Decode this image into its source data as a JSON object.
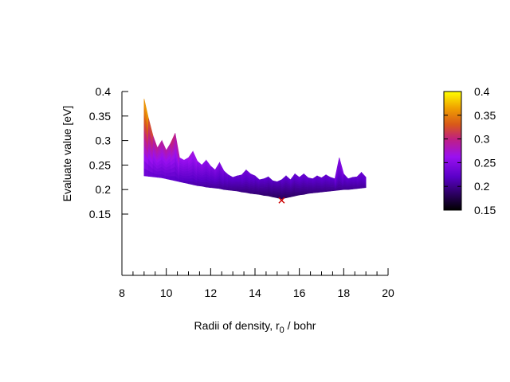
{
  "chart_data": {
    "type": "area",
    "ylabel": "Evaluate value [eV]",
    "xlabel": {
      "prefix": "Radii of density, r",
      "subscript": "0",
      "suffix": " / bohr"
    },
    "xlim": [
      8,
      20
    ],
    "xticks": [
      "8",
      "10",
      "12",
      "14",
      "16",
      "18",
      "20"
    ],
    "xtick_values": [
      8,
      10,
      12,
      14,
      16,
      18,
      20
    ],
    "ylim": [
      0.025,
      0.4
    ],
    "yticks": [
      "0.4",
      "0.35",
      "0.3",
      "0.25",
      "0.2",
      "0.15"
    ],
    "ytick_values": [
      0.4,
      0.35,
      0.3,
      0.25,
      0.2,
      0.15
    ],
    "colorbar": {
      "range": [
        0.15,
        0.4
      ],
      "ticks": [
        "0.4",
        "0.35",
        "0.3",
        "0.25",
        "0.2",
        "0.15"
      ],
      "tick_values": [
        0.4,
        0.35,
        0.3,
        0.25,
        0.2,
        0.15
      ],
      "palette": [
        "#000000",
        "#5a00c8",
        "#9a10f0",
        "#c02080",
        "#d8581a",
        "#f0a000",
        "#ffff00"
      ],
      "palette_stops": [
        0.0,
        0.28,
        0.45,
        0.6,
        0.72,
        0.86,
        1.0
      ]
    },
    "surface": {
      "x": [
        9.0,
        9.2,
        9.4,
        9.6,
        9.8,
        10.0,
        10.2,
        10.4,
        10.6,
        10.8,
        11.0,
        11.2,
        11.4,
        11.6,
        11.8,
        12.0,
        12.2,
        12.4,
        12.6,
        12.8,
        13.0,
        13.2,
        13.4,
        13.6,
        13.8,
        14.0,
        14.2,
        14.4,
        14.6,
        14.8,
        15.0,
        15.2,
        15.4,
        15.6,
        15.8,
        16.0,
        16.2,
        16.4,
        16.6,
        16.8,
        17.0,
        17.2,
        17.4,
        17.6,
        17.8,
        18.0,
        18.2,
        18.4,
        18.6,
        18.8,
        19.0
      ],
      "upper": [
        0.385,
        0.345,
        0.31,
        0.285,
        0.3,
        0.28,
        0.295,
        0.315,
        0.265,
        0.26,
        0.265,
        0.278,
        0.258,
        0.25,
        0.26,
        0.248,
        0.24,
        0.255,
        0.238,
        0.23,
        0.225,
        0.228,
        0.23,
        0.24,
        0.232,
        0.228,
        0.22,
        0.222,
        0.226,
        0.218,
        0.216,
        0.22,
        0.228,
        0.22,
        0.232,
        0.225,
        0.232,
        0.224,
        0.222,
        0.228,
        0.224,
        0.23,
        0.225,
        0.222,
        0.265,
        0.232,
        0.222,
        0.225,
        0.226,
        0.235,
        0.225
      ],
      "lower": [
        0.228,
        0.227,
        0.226,
        0.225,
        0.224,
        0.222,
        0.22,
        0.218,
        0.216,
        0.214,
        0.212,
        0.21,
        0.208,
        0.207,
        0.205,
        0.204,
        0.203,
        0.202,
        0.2,
        0.199,
        0.198,
        0.197,
        0.195,
        0.194,
        0.192,
        0.191,
        0.19,
        0.188,
        0.187,
        0.185,
        0.183,
        0.181,
        0.183,
        0.185,
        0.187,
        0.189,
        0.19,
        0.192,
        0.193,
        0.194,
        0.195,
        0.196,
        0.197,
        0.198,
        0.199,
        0.2,
        0.2,
        0.201,
        0.202,
        0.203,
        0.204
      ]
    },
    "minimum": {
      "x": 15.2,
      "y": 0.178,
      "marker": "x",
      "color": "#cc0000"
    }
  }
}
